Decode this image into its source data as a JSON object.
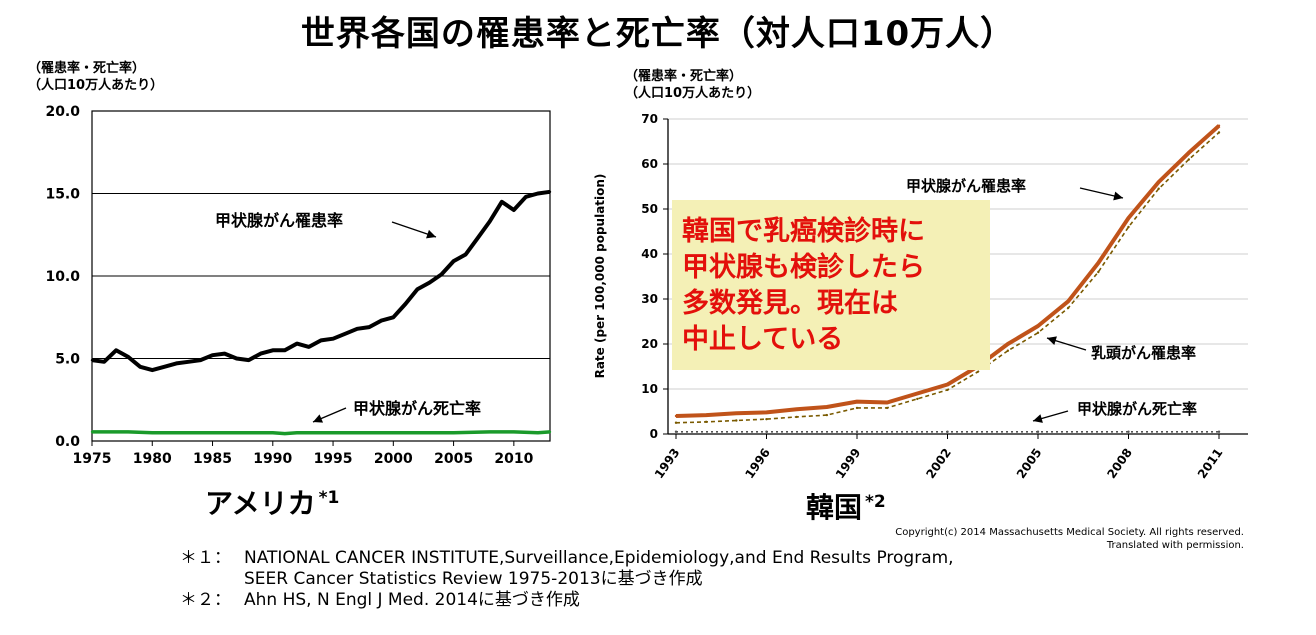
{
  "title": "世界各国の罹患率と死亡率（対人口10万人）",
  "left_unit": [
    "（罹患率・死亡率）",
    "（人口10万人あたり）"
  ],
  "right_unit": [
    "（罹患率・死亡率）",
    "（人口10万人あたり）"
  ],
  "callout": [
    "韓国で乳癌検診時に",
    "甲状腺も検診したら",
    "多数発見。現在は",
    "中止している"
  ],
  "copyright": [
    "Copyright(c) 2014 Massachusetts Medical Society. All rights reserved.",
    "Translated with permission."
  ],
  "notes": [
    {
      "mark": "＊１：",
      "lines": [
        "NATIONAL  CANCER INSTITUTE,Surveillance,Epidemiology,and  End Results  Program,",
        "SEER Cancer Statistics Review 1975-2013に基づき作成"
      ]
    },
    {
      "mark": "＊２：",
      "lines": [
        "Ahn HS, N Engl J Med. 2014に基づき作成"
      ]
    }
  ],
  "chart_data": [
    {
      "type": "line",
      "title": "アメリカ*1",
      "country": "アメリカ",
      "footnote_mark": "*1",
      "xlabel": "",
      "ylabel": "",
      "xlim": [
        1975,
        2013
      ],
      "ylim": [
        0,
        20
      ],
      "x_ticks": [
        1975,
        1980,
        1985,
        1990,
        1995,
        2000,
        2005,
        2010
      ],
      "y_ticks": [
        0,
        5,
        10,
        15,
        20
      ],
      "y_tick_labels": [
        "0.0",
        "5.0",
        "10.0",
        "15.0",
        "20.0"
      ],
      "grid": "horizontal",
      "colors": {
        "incidence": "#000000",
        "mortality": "#1a9a2a"
      },
      "series": [
        {
          "name": "甲状腺がん罹患率",
          "key": "incidence",
          "x": [
            1975,
            1976,
            1977,
            1978,
            1979,
            1980,
            1981,
            1982,
            1983,
            1984,
            1985,
            1986,
            1987,
            1988,
            1989,
            1990,
            1991,
            1992,
            1993,
            1994,
            1995,
            1996,
            1997,
            1998,
            1999,
            2000,
            2001,
            2002,
            2003,
            2004,
            2005,
            2006,
            2007,
            2008,
            2009,
            2010,
            2011,
            2012,
            2013
          ],
          "y": [
            4.9,
            4.8,
            5.5,
            5.1,
            4.5,
            4.3,
            4.5,
            4.7,
            4.8,
            4.9,
            5.2,
            5.3,
            5.0,
            4.9,
            5.3,
            5.5,
            5.5,
            5.9,
            5.7,
            6.1,
            6.2,
            6.5,
            6.8,
            6.9,
            7.3,
            7.5,
            8.3,
            9.2,
            9.6,
            10.1,
            10.9,
            11.3,
            12.3,
            13.3,
            14.5,
            14.0,
            14.8,
            15.0,
            15.1
          ]
        },
        {
          "name": "甲状腺がん死亡率",
          "key": "mortality",
          "x": [
            1975,
            1978,
            1980,
            1985,
            1990,
            1991,
            1992,
            1995,
            2000,
            2005,
            2008,
            2010,
            2012,
            2013
          ],
          "y": [
            0.55,
            0.55,
            0.5,
            0.5,
            0.5,
            0.45,
            0.5,
            0.5,
            0.5,
            0.5,
            0.55,
            0.55,
            0.5,
            0.55
          ]
        }
      ],
      "annotations": [
        {
          "text": "甲状腺がん罹患率",
          "series": "incidence"
        },
        {
          "text": "甲状腺がん死亡率",
          "series": "mortality"
        }
      ]
    },
    {
      "type": "line",
      "title": "韓国*2",
      "country": "韓国",
      "footnote_mark": "*2",
      "xlabel": "",
      "ylabel": "Rate (per 100,000 population)",
      "xlim": [
        1993,
        2011
      ],
      "ylim": [
        0,
        70
      ],
      "x_ticks": [
        1993,
        1996,
        1999,
        2002,
        2005,
        2008,
        2011
      ],
      "y_ticks": [
        0,
        10,
        20,
        30,
        40,
        50,
        60,
        70
      ],
      "grid": "horizontal",
      "colors": {
        "thyroid_incidence": "#c0531a",
        "breast_incidence": "#7a5a00",
        "thyroid_mortality": "#555555"
      },
      "series": [
        {
          "name": "甲状腺がん罹患率",
          "key": "thyroid_incidence",
          "x": [
            1993,
            1994,
            1995,
            1996,
            1997,
            1998,
            1999,
            2000,
            2001,
            2002,
            2003,
            2004,
            2005,
            2006,
            2007,
            2008,
            2009,
            2010,
            2011
          ],
          "y": [
            4.0,
            4.2,
            4.6,
            4.8,
            5.5,
            6.0,
            7.2,
            7.0,
            9.0,
            11.0,
            15.0,
            20.0,
            24.0,
            29.5,
            38.0,
            48.0,
            56.0,
            62.5,
            68.5
          ]
        },
        {
          "name": "乳頭がん罹患率",
          "key": "breast_incidence",
          "x": [
            1993,
            1994,
            1995,
            1996,
            1997,
            1998,
            1999,
            2000,
            2001,
            2002,
            2003,
            2004,
            2005,
            2006,
            2007,
            2008,
            2009,
            2010,
            2011
          ],
          "y": [
            2.5,
            2.7,
            3.0,
            3.3,
            3.8,
            4.2,
            5.8,
            5.8,
            7.8,
            9.8,
            13.8,
            18.5,
            22.5,
            28.0,
            36.0,
            46.0,
            54.5,
            61.0,
            67.0
          ]
        },
        {
          "name": "甲状腺がん死亡率",
          "key": "thyroid_mortality",
          "x": [
            1993,
            1996,
            1999,
            2002,
            2005,
            2008,
            2011
          ],
          "y": [
            0.5,
            0.5,
            0.5,
            0.5,
            0.5,
            0.5,
            0.5
          ]
        }
      ],
      "annotations": [
        {
          "text": "甲状腺がん罹患率",
          "series": "thyroid_incidence"
        },
        {
          "text": "乳頭がん罹患率",
          "series": "breast_incidence"
        },
        {
          "text": "甲状腺がん死亡率",
          "series": "thyroid_mortality"
        }
      ]
    }
  ]
}
